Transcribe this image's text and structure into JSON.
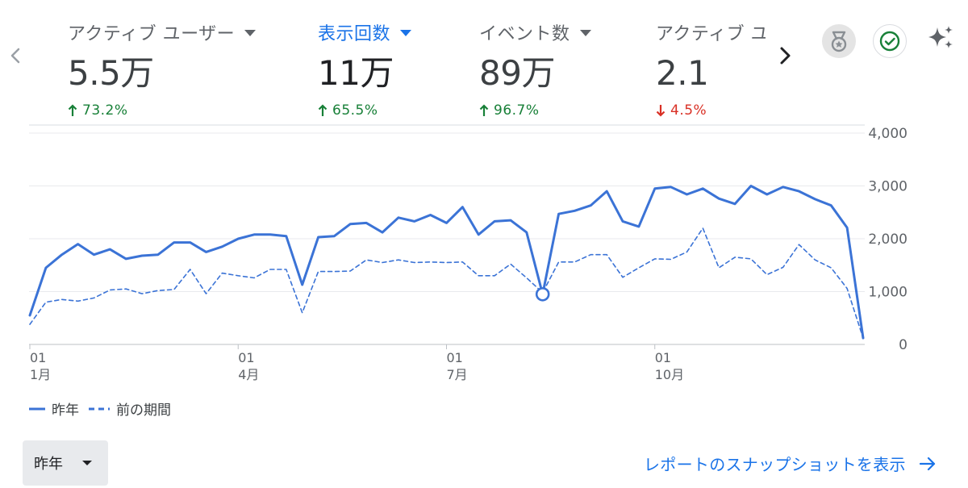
{
  "metrics": [
    {
      "label": "アクティブ ユーザー",
      "value": "5.5万",
      "change": "73.2%",
      "direction": "up",
      "selected": false
    },
    {
      "label": "表示回数",
      "value": "11万",
      "change": "65.5%",
      "direction": "up",
      "selected": true
    },
    {
      "label": "イベント数",
      "value": "89万",
      "change": "96.7%",
      "direction": "up",
      "selected": false
    },
    {
      "label": "アクティブ ユ",
      "value": "2.1",
      "change": "4.5%",
      "direction": "down",
      "selected": false
    }
  ],
  "icons": {
    "prev": "chevron-left-icon",
    "next": "chevron-right-icon",
    "award": "medal-icon",
    "check": "check-circle-icon",
    "sparkle": "sparkle-icon"
  },
  "colors": {
    "accent": "#1a73e8",
    "series": "#3b73d6",
    "up": "#188038",
    "down": "#d93025"
  },
  "chart_data": {
    "type": "line",
    "y_ticks": [
      "4,000",
      "3,000",
      "2,000",
      "1,000",
      "0"
    ],
    "ylim": [
      0,
      4000
    ],
    "x_ticks": [
      {
        "index": 0,
        "day": "01",
        "month": "1月"
      },
      {
        "index": 13,
        "day": "01",
        "month": "4月"
      },
      {
        "index": 26,
        "day": "01",
        "month": "7月"
      },
      {
        "index": 39,
        "day": "01",
        "month": "10月"
      }
    ],
    "grid": true,
    "highlight_index": 32,
    "series": [
      {
        "name": "昨年",
        "style": "solid",
        "values": [
          550,
          1450,
          1700,
          1900,
          1700,
          1800,
          1620,
          1680,
          1700,
          1930,
          1930,
          1750,
          1850,
          2000,
          2080,
          2080,
          2050,
          1130,
          2030,
          2050,
          2280,
          2300,
          2120,
          2400,
          2330,
          2450,
          2300,
          2600,
          2080,
          2330,
          2350,
          2120,
          950,
          2470,
          2530,
          2630,
          2900,
          2330,
          2230,
          2950,
          2980,
          2840,
          2950,
          2760,
          2660,
          3000,
          2840,
          2980,
          2900,
          2750,
          2630,
          2210,
          120
        ]
      },
      {
        "name": "前の期間",
        "style": "dashed",
        "values": [
          380,
          800,
          850,
          820,
          880,
          1030,
          1050,
          960,
          1020,
          1040,
          1420,
          960,
          1350,
          1300,
          1260,
          1420,
          1420,
          600,
          1380,
          1380,
          1390,
          1600,
          1550,
          1600,
          1550,
          1560,
          1550,
          1560,
          1300,
          1300,
          1520,
          1260,
          980,
          1560,
          1560,
          1700,
          1700,
          1270,
          1450,
          1620,
          1610,
          1750,
          2200,
          1450,
          1650,
          1620,
          1320,
          1460,
          1890,
          1600,
          1450,
          1060,
          120
        ]
      }
    ]
  },
  "legend": [
    {
      "label": "昨年",
      "style": "solid"
    },
    {
      "label": "前の期間",
      "style": "dashed"
    }
  ],
  "range_select": {
    "value": "昨年"
  },
  "snapshot_link": {
    "label": "レポートのスナップショットを表示"
  }
}
